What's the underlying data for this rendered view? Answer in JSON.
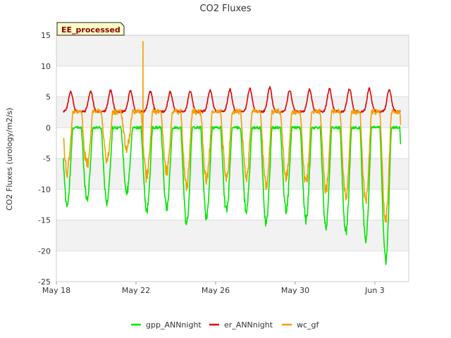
{
  "chart_data": {
    "type": "line",
    "title": "CO2 Fluxes",
    "xlabel": "",
    "ylabel": "CO2 Fluxes (urology/m2/s)",
    "badge": "EE_processed",
    "ylim": [
      -25,
      15
    ],
    "yticks": [
      -25,
      -20,
      -15,
      -10,
      -5,
      0,
      5,
      10,
      15
    ],
    "xlim_days": [
      0,
      17.7
    ],
    "xticks": [
      {
        "day": 0,
        "label": "May 18"
      },
      {
        "day": 4,
        "label": "May 22"
      },
      {
        "day": 8,
        "label": "May 26"
      },
      {
        "day": 12,
        "label": "May 30"
      },
      {
        "day": 16,
        "label": "Jun 3"
      }
    ],
    "x_range_days": [
      0.35,
      17.3
    ],
    "series": [
      {
        "name": "gpp_ANNnight",
        "color": "#00e600",
        "daily_min": [
          -12.5,
          -11.5,
          -12.0,
          -10.5,
          -13.5,
          -13.0,
          -15.5,
          -14.5,
          -13.5,
          -13.5,
          -15.5,
          -13.5,
          -15.0,
          -16.0,
          -17.0,
          -18.0,
          -21.5
        ],
        "night_level": 0.0
      },
      {
        "name": "er_ANNnight",
        "color": "#e00000",
        "daily_max": [
          5.8,
          5.9,
          6.0,
          6.0,
          5.9,
          5.8,
          5.9,
          6.1,
          6.2,
          6.3,
          6.5,
          6.1,
          6.2,
          6.3,
          6.3,
          6.3,
          6.2
        ],
        "night_level": 2.6
      },
      {
        "name": "wc_gf",
        "color": "#f0a000",
        "daily_min": [
          -7.0,
          -6.0,
          -5.5,
          -3.5,
          -8.0,
          -7.0,
          -9.5,
          -8.5,
          -8.0,
          -8.0,
          -9.5,
          -8.0,
          -9.0,
          -10.0,
          -11.5,
          -12.0,
          -15.0
        ],
        "night_level": 2.6,
        "spike": {
          "day": 4.35,
          "value": 14.0
        }
      }
    ],
    "legend_position": "bottom-center"
  }
}
